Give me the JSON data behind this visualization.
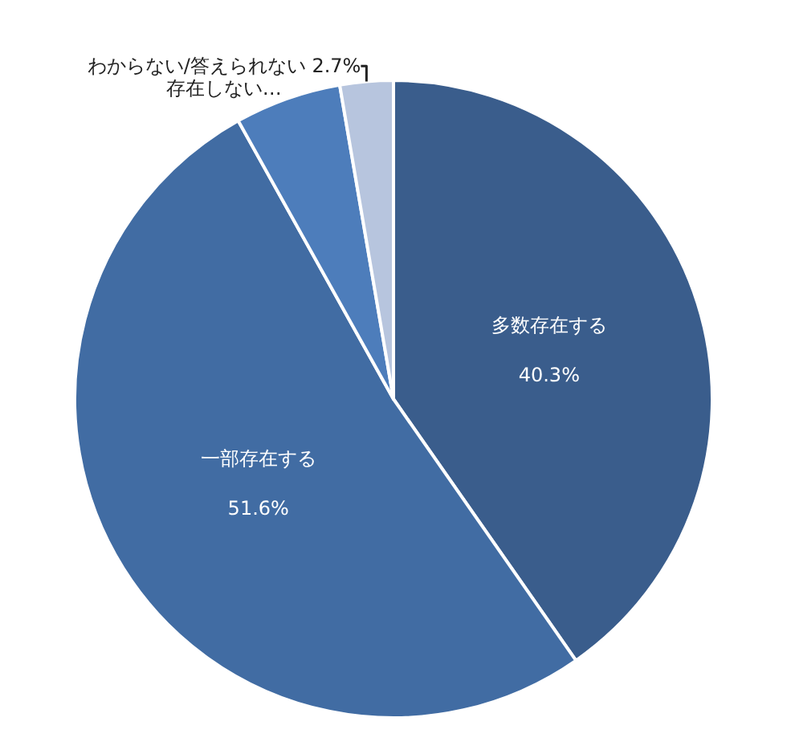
{
  "chart_data": {
    "type": "pie",
    "categories": [
      "多数存在する",
      "一部存在する",
      "存在しない…",
      "わからない/答えられない"
    ],
    "values": [
      40.3,
      51.6,
      5.4,
      2.7
    ],
    "value_labels": [
      "40.3%",
      "51.6%",
      null,
      "2.7%"
    ],
    "colors": [
      "#3a5d8c",
      "#416ca3",
      "#4d7dbb",
      "#b7c5de"
    ],
    "legend": false
  }
}
